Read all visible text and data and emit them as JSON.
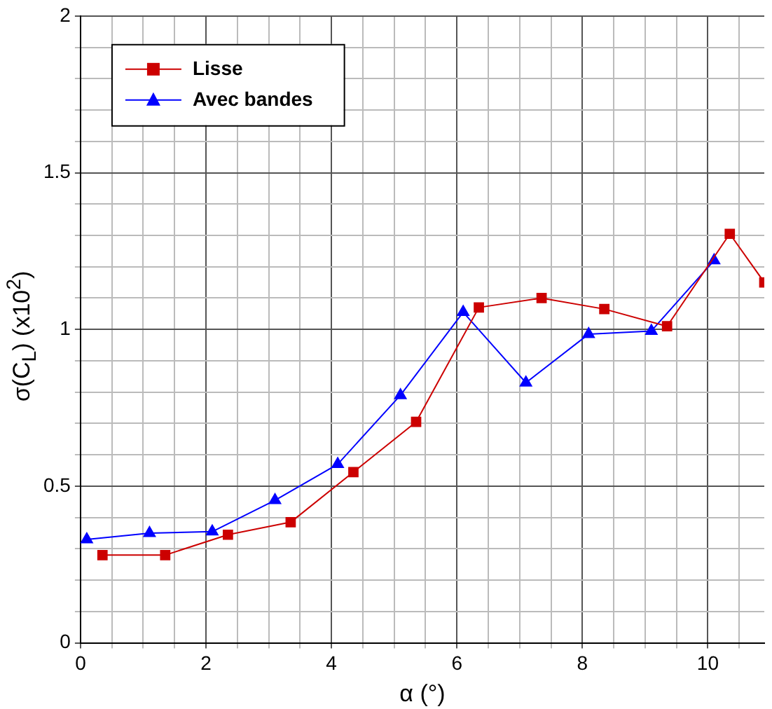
{
  "chart_data": {
    "type": "line",
    "xlabel": "α (°)",
    "ylabel": "σ(C$_{L}$) (x10$^{2}$)",
    "xlim": [
      0,
      10.9
    ],
    "ylim": [
      0,
      2
    ],
    "xticks": [
      0,
      {
        "value": 0.5,
        "label": null
      },
      {
        "value": 1,
        "label": null
      },
      {
        "value": 1.5,
        "label": null
      },
      2,
      {
        "value": 2.5,
        "label": null
      },
      {
        "value": 3,
        "label": null
      },
      {
        "value": 3.5,
        "label": null
      },
      4,
      {
        "value": 4.5,
        "label": null
      },
      {
        "value": 5,
        "label": null
      },
      {
        "value": 5.5,
        "label": null
      },
      6,
      {
        "value": 6.5,
        "label": null
      },
      {
        "value": 7,
        "label": null
      },
      {
        "value": 7.5,
        "label": null
      },
      8,
      {
        "value": 8.5,
        "label": null
      },
      {
        "value": 9,
        "label": null
      },
      {
        "value": 9.5,
        "label": null
      },
      10,
      {
        "value": 10.5,
        "label": null
      }
    ],
    "yticks": [
      0,
      {
        "value": 0.1,
        "label": null
      },
      {
        "value": 0.2,
        "label": null
      },
      {
        "value": 0.3,
        "label": null
      },
      {
        "value": 0.4,
        "label": null
      },
      0.5,
      {
        "value": 0.6,
        "label": null
      },
      {
        "value": 0.7,
        "label": null
      },
      {
        "value": 0.8,
        "label": null
      },
      {
        "value": 0.9,
        "label": null
      },
      1,
      {
        "value": 1.1,
        "label": null
      },
      {
        "value": 1.2,
        "label": null
      },
      {
        "value": 1.3,
        "label": null
      },
      {
        "value": 1.4,
        "label": null
      },
      1.5,
      {
        "value": 1.6,
        "label": null
      },
      {
        "value": 1.7,
        "label": null
      },
      {
        "value": 1.8,
        "label": null
      },
      {
        "value": 1.9,
        "label": null
      },
      2
    ],
    "grid": true,
    "legend": "top left",
    "line_style": "solid",
    "series": [
      {
        "name": "Lisse",
        "color": "#cc0000",
        "marker": "square",
        "x": [
          0.35,
          1.35,
          2.35,
          3.35,
          4.35,
          5.35,
          6.35,
          7.35,
          8.35,
          9.35,
          10.35,
          10.9
        ],
        "values": [
          0.28,
          0.28,
          0.345,
          0.385,
          0.545,
          0.705,
          1.07,
          1.1,
          1.065,
          1.01,
          1.305,
          1.15
        ]
      },
      {
        "name": "Avec bandes",
        "color": "#0000ff",
        "marker": "triangle",
        "x": [
          0.1,
          1.1,
          2.1,
          3.1,
          4.1,
          5.1,
          6.1,
          7.1,
          8.1,
          9.1,
          10.1
        ],
        "values": [
          0.33,
          0.35,
          0.355,
          0.455,
          0.57,
          0.79,
          1.055,
          0.83,
          0.985,
          0.995,
          1.22
        ]
      }
    ]
  }
}
